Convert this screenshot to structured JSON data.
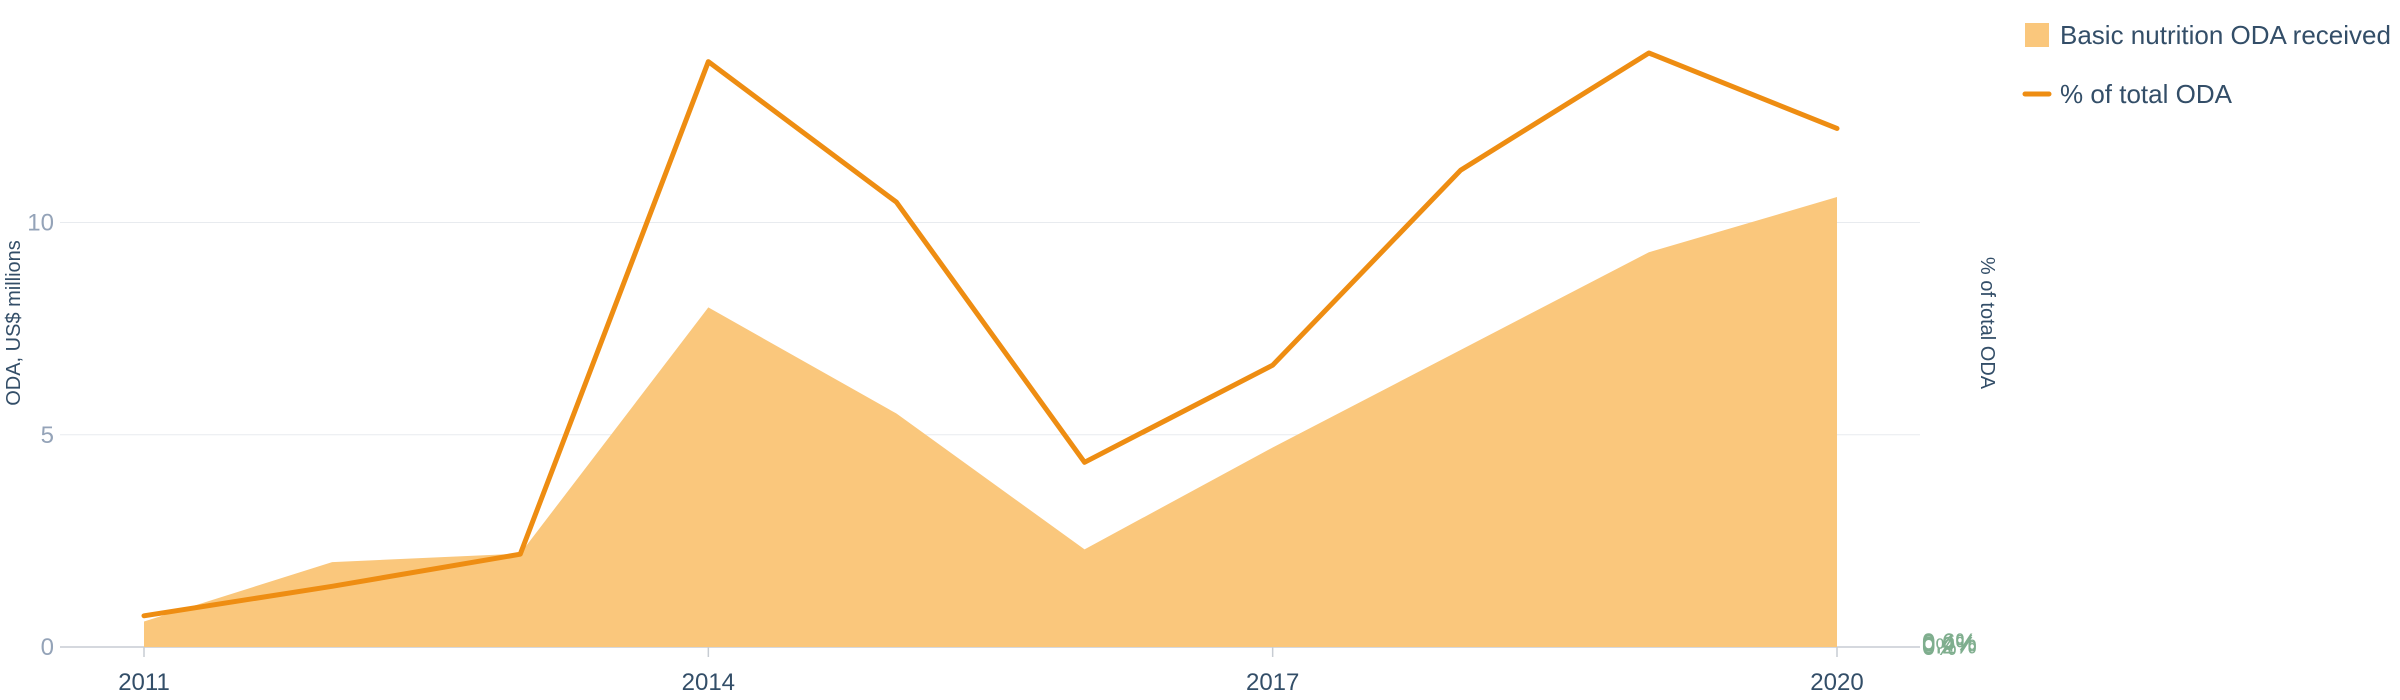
{
  "chart_data": {
    "type": "area",
    "title": "",
    "x": [
      2011,
      2012,
      2013,
      2014,
      2015,
      2016,
      2017,
      2018,
      2019,
      2020
    ],
    "xticks": [
      "2011",
      "2014",
      "2017",
      "2020"
    ],
    "xlim": [
      2011,
      2020
    ],
    "ylabel": "ODA, US$ millions",
    "ylim": [
      0,
      14.3
    ],
    "yticks": [
      "0",
      "5",
      "10"
    ],
    "y2label": "% of total ODA",
    "y2lim": [
      0,
      0.7
    ],
    "y2ticks": [
      "0%",
      "0.2%",
      "0.4%",
      "0.6%"
    ],
    "grid": true,
    "legend_position": "top-right",
    "series": [
      {
        "name": "Basic nutrition ODA received",
        "type": "area",
        "axis": "left",
        "color": "#fac77c",
        "values": [
          0.6,
          2.0,
          2.2,
          8.0,
          5.5,
          2.3,
          4.7,
          7.0,
          9.3,
          10.6
        ]
      },
      {
        "name": "% of total ODA",
        "type": "line",
        "axis": "right",
        "color": "#ee8d12",
        "values": [
          0.036,
          0.07,
          0.107,
          0.675,
          0.513,
          0.213,
          0.325,
          0.55,
          0.685,
          0.598
        ]
      }
    ]
  }
}
